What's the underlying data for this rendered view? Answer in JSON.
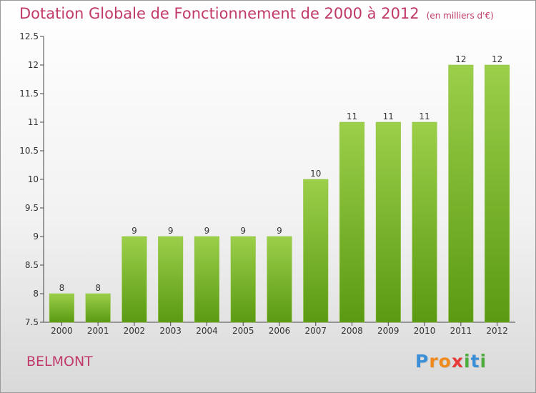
{
  "colors": {
    "title": "#c0396a",
    "bar_top": "#9ccf4a",
    "bar_bottom": "#5a9a12",
    "axis": "#444444"
  },
  "chart_data": {
    "type": "bar",
    "title": "Dotation Globale de Fonctionnement de 2000 à 2012",
    "subtitle": "(en milliers d'€)",
    "categories": [
      "2000",
      "2001",
      "2002",
      "2003",
      "2004",
      "2005",
      "2006",
      "2007",
      "2008",
      "2009",
      "2010",
      "2011",
      "2012"
    ],
    "values": [
      8,
      8,
      9,
      9,
      9,
      9,
      9,
      10,
      11,
      11,
      11,
      12,
      12
    ],
    "data_labels": [
      "8",
      "8",
      "9",
      "9",
      "9",
      "9",
      "9",
      "10",
      "11",
      "11",
      "11",
      "12",
      "12"
    ],
    "ylim": [
      7.5,
      12.5
    ],
    "yticks": [
      "7.5",
      "8",
      "8.5",
      "9",
      "9.5",
      "10",
      "10.5",
      "11",
      "11.5",
      "12",
      "12.5"
    ],
    "xlabel": "",
    "ylabel": "",
    "grid": false
  },
  "commune": "BELMONT",
  "logo": {
    "letters": [
      "P",
      "r",
      "o",
      "x",
      "i",
      "t",
      "i"
    ],
    "colors": [
      "#3a8fd6",
      "#f08a1e",
      "#f08a1e",
      "#e83a3a",
      "#4cae3a",
      "#3a8fd6",
      "#4cae3a"
    ]
  }
}
